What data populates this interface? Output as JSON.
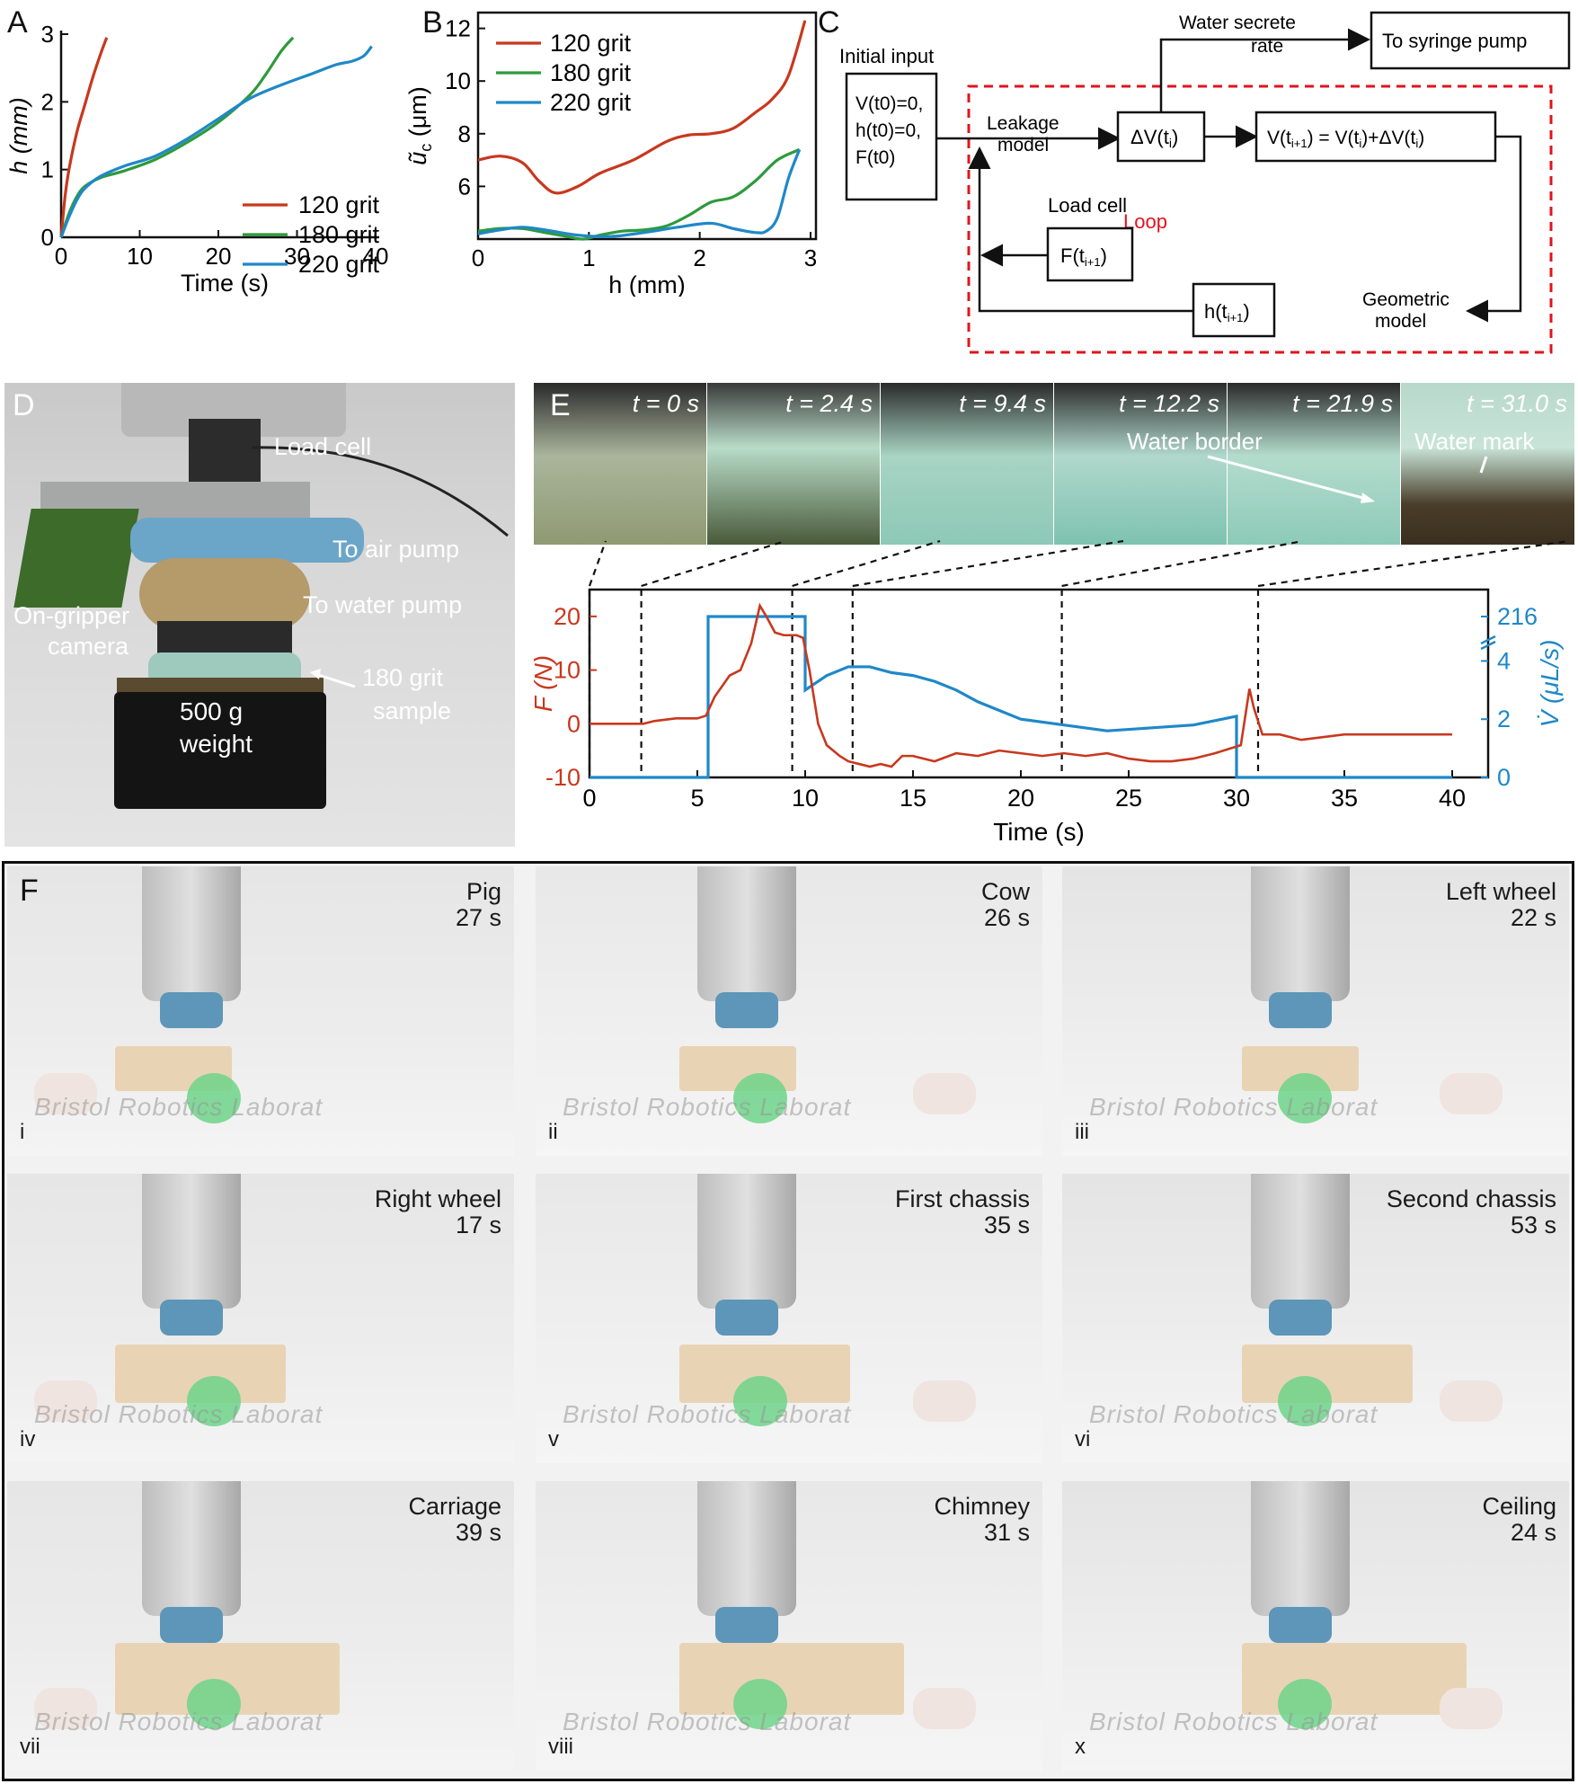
{
  "panels": {
    "A": "A",
    "B": "B",
    "C": "C",
    "D": "D",
    "E": "E",
    "F": "F"
  },
  "panel_A": {
    "xlabel": "Time (s)",
    "ylabel": "h (mm)",
    "xticks": [
      "0",
      "10",
      "20",
      "30",
      "40"
    ],
    "yticks": [
      "0",
      "1",
      "2",
      "3"
    ],
    "legend": [
      "120 grit",
      "180 grit",
      "220 grit"
    ],
    "colors": [
      "#c8381e",
      "#2e9a3c",
      "#1f88c8"
    ]
  },
  "panel_B": {
    "xlabel": "h (mm)",
    "ylabel": "ũ",
    "ylabel_sub": "c",
    "ylabel_unit": " (μm)",
    "xticks": [
      "0",
      "1",
      "2",
      "3"
    ],
    "yticks": [
      "6",
      "8",
      "10",
      "12"
    ],
    "legend": [
      "120 grit",
      "180 grit",
      "220 grit"
    ]
  },
  "panel_C": {
    "initial_input": "Initial input",
    "init_lines": [
      "V(t0)=0,",
      "h(t0)=0,",
      "F(t0)"
    ],
    "leakage_model": [
      "Leakage",
      "model"
    ],
    "delta_v": "ΔV(t",
    "delta_v_sub": "i",
    "update_eq": "V(t",
    "water_secrete": [
      "Water secrete",
      "rate"
    ],
    "to_syringe": "To syringe pump",
    "load_cell": "Load cell",
    "f_box": "F(t",
    "loop": "Loop",
    "h_box": "h(t",
    "geometric_model": [
      "Geometric",
      "model"
    ],
    "sub_i1": "i+1",
    "loop_color": "#e0141e"
  },
  "panel_D": {
    "labels": {
      "load_cell": "Load cell",
      "air_pump": "To air pump",
      "water_pump": "To water pump",
      "camera": [
        "On-gripper",
        "camera"
      ],
      "sample": [
        "180 grit",
        "sample"
      ],
      "weight": [
        "500 g",
        "weight"
      ]
    }
  },
  "panel_E": {
    "frames": [
      {
        "label": "t = 0 s",
        "annotation": ""
      },
      {
        "label": "t = 2.4 s",
        "annotation": ""
      },
      {
        "label": "t = 9.4 s",
        "annotation": ""
      },
      {
        "label": "t = 12.2 s",
        "annotation": "Water border"
      },
      {
        "label": "t = 21.9 s",
        "annotation": ""
      },
      {
        "label": "t = 31.0 s",
        "annotation": "Water mark"
      }
    ],
    "xlabel": "Time (s)",
    "ylabel_left": "F (N)",
    "ylabel_right": "V̇ (μL/s)",
    "xticks": [
      "0",
      "5",
      "10",
      "15",
      "20",
      "25",
      "30",
      "35",
      "40"
    ],
    "yticks_left": [
      "-10",
      "0",
      "10",
      "20"
    ],
    "yticks_right": [
      "0",
      "2",
      "4",
      "216"
    ],
    "dashed_times": [
      0,
      2.4,
      9.4,
      12.2,
      21.9,
      31.0
    ]
  },
  "panel_F": {
    "tiles": [
      {
        "title": "Pig",
        "time": "27 s",
        "roman": "i"
      },
      {
        "title": "Cow",
        "time": "26 s",
        "roman": "ii"
      },
      {
        "title": "Left wheel",
        "time": "22 s",
        "roman": "iii"
      },
      {
        "title": "Right wheel",
        "time": "17 s",
        "roman": "iv"
      },
      {
        "title": "First chassis",
        "time": "35 s",
        "roman": "v"
      },
      {
        "title": "Second chassis",
        "time": "53 s",
        "roman": "vi"
      },
      {
        "title": "Carriage",
        "time": "39 s",
        "roman": "vii"
      },
      {
        "title": "Chimney",
        "time": "31 s",
        "roman": "viii"
      },
      {
        "title": "Ceiling",
        "time": "24 s",
        "roman": "x"
      }
    ],
    "watermark": "Bristol Robotics Laborat"
  },
  "chart_data": [
    {
      "panel": "A",
      "type": "line",
      "xlabel": "Time (s)",
      "ylabel": "h (mm)",
      "xlim": [
        0,
        40
      ],
      "ylim": [
        0,
        3
      ],
      "legend_position": "bottom-right",
      "series": [
        {
          "name": "120 grit",
          "x": [
            0,
            0.5,
            1,
            2,
            3,
            4,
            5,
            5.8
          ],
          "y": [
            0,
            0.6,
            1.0,
            1.55,
            1.95,
            2.35,
            2.7,
            2.95
          ]
        },
        {
          "name": "180 grit",
          "x": [
            0,
            1,
            2,
            3,
            5,
            8,
            12,
            16,
            20,
            24,
            26,
            28,
            29.5
          ],
          "y": [
            0,
            0.35,
            0.6,
            0.75,
            0.88,
            0.98,
            1.15,
            1.4,
            1.7,
            2.1,
            2.4,
            2.75,
            2.95
          ]
        },
        {
          "name": "220 grit",
          "x": [
            0,
            1,
            2,
            3,
            5,
            8,
            12,
            16,
            20,
            24,
            28,
            32,
            35,
            37,
            38.5,
            39.5
          ],
          "y": [
            0,
            0.3,
            0.55,
            0.72,
            0.9,
            1.05,
            1.2,
            1.45,
            1.75,
            2.05,
            2.25,
            2.42,
            2.55,
            2.6,
            2.68,
            2.82
          ]
        }
      ]
    },
    {
      "panel": "B",
      "type": "line",
      "xlabel": "h (mm)",
      "ylabel": "ũc (μm)",
      "xlim": [
        0,
        3
      ],
      "ylim": [
        4,
        12.6
      ],
      "legend_position": "top-left",
      "series": [
        {
          "name": "120 grit",
          "x": [
            0,
            0.2,
            0.4,
            0.55,
            0.7,
            0.9,
            1.1,
            1.4,
            1.7,
            1.9,
            2.1,
            2.3,
            2.5,
            2.65,
            2.8,
            2.95
          ],
          "y": [
            7.0,
            7.15,
            6.9,
            6.2,
            5.75,
            6.0,
            6.5,
            7.0,
            7.7,
            7.95,
            8.0,
            8.2,
            8.8,
            9.3,
            10.2,
            12.3
          ]
        },
        {
          "name": "180 grit",
          "x": [
            0,
            0.2,
            0.4,
            0.6,
            0.8,
            0.95,
            1.1,
            1.3,
            1.5,
            1.7,
            1.9,
            2.1,
            2.3,
            2.5,
            2.7,
            2.9
          ],
          "y": [
            4.3,
            4.4,
            4.4,
            4.25,
            4.1,
            4.0,
            4.15,
            4.3,
            4.35,
            4.5,
            4.9,
            5.4,
            5.6,
            6.2,
            7.0,
            7.4
          ]
        },
        {
          "name": "220 grit",
          "x": [
            0,
            0.2,
            0.4,
            0.6,
            0.9,
            1.2,
            1.5,
            1.8,
            2.1,
            2.3,
            2.5,
            2.6,
            2.7,
            2.8,
            2.9
          ],
          "y": [
            4.2,
            4.35,
            4.45,
            4.35,
            4.15,
            4.1,
            4.25,
            4.45,
            4.6,
            4.4,
            4.25,
            4.3,
            4.8,
            6.3,
            7.4
          ]
        }
      ]
    },
    {
      "panel": "E",
      "type": "line",
      "xlabel": "Time (s)",
      "ylabel": "F (N)",
      "ylabel_right": "V̇ (μL/s)",
      "xlim": [
        0,
        40
      ],
      "ylim_left": [
        -10,
        25
      ],
      "ylim_right": [
        0,
        216
      ],
      "series": [
        {
          "name": "F",
          "axis": "left",
          "x": [
            0,
            2.5,
            3,
            4,
            5,
            5.4,
            5.8,
            6.5,
            7,
            7.5,
            7.9,
            8.2,
            8.6,
            9,
            9.6,
            9.9,
            10.2,
            10.6,
            11,
            11.6,
            12,
            12.5,
            13,
            13.5,
            14,
            14.5,
            15,
            16,
            17,
            18,
            19,
            20,
            21,
            22,
            23,
            24,
            25,
            26,
            27,
            28,
            29,
            29.8,
            30.2,
            30.6,
            30.8,
            31.2,
            32,
            33,
            35,
            37,
            40
          ],
          "y": [
            0,
            0,
            0.5,
            1,
            1,
            1.5,
            5,
            9,
            10,
            15,
            22,
            20,
            17,
            16.5,
            16.5,
            16,
            10,
            0,
            -4,
            -6,
            -7,
            -7.5,
            -8,
            -7.5,
            -8,
            -6,
            -6,
            -7,
            -5.5,
            -6,
            -5,
            -5.5,
            -6,
            -5.5,
            -6,
            -5.5,
            -6.5,
            -7,
            -7,
            -6.5,
            -5.5,
            -4.5,
            -4,
            6.5,
            3,
            -2,
            -2,
            -3,
            -2,
            -2,
            -2
          ]
        },
        {
          "name": "V̇",
          "axis": "right",
          "x": [
            0,
            5.5,
            5.5,
            10,
            10,
            11,
            12,
            13,
            14,
            15,
            16,
            17,
            18,
            19,
            20,
            22,
            24,
            26,
            28,
            30,
            30,
            40
          ],
          "y": [
            0,
            0,
            216,
            216,
            3.0,
            3.5,
            3.8,
            3.8,
            3.6,
            3.5,
            3.3,
            3.0,
            2.6,
            2.3,
            2.0,
            1.8,
            1.6,
            1.7,
            1.8,
            2.1,
            0,
            0
          ]
        }
      ]
    }
  ]
}
